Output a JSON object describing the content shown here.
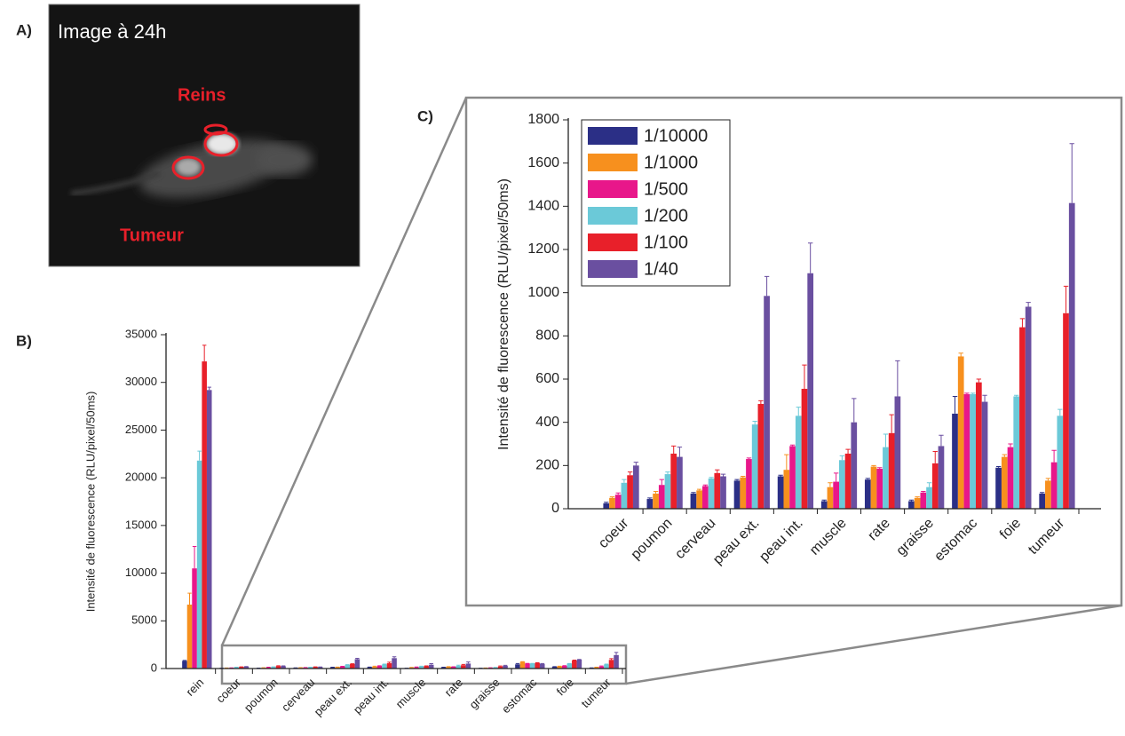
{
  "panel_a": {
    "label": "A)",
    "title": "Image à 24h",
    "annotations": [
      "Reins",
      "Tumeur"
    ]
  },
  "chart_data": [
    {
      "type": "bar",
      "label": "B)",
      "ylabel": "Intensité de fluorescence (RLU/pixel/50ms)",
      "categories": [
        "rein",
        "coeur",
        "poumon",
        "cerveau",
        "peau ext.",
        "peau int.",
        "muscle",
        "rate",
        "graisse",
        "estomac",
        "foie",
        "tumeur"
      ],
      "series": [
        {
          "name": "1/10000",
          "color": "#2b2f86",
          "values": [
            800,
            25,
            45,
            70,
            130,
            150,
            35,
            135,
            35,
            440,
            190,
            70
          ],
          "errors": [
            50,
            5,
            5,
            5,
            5,
            5,
            5,
            5,
            5,
            80,
            5,
            5
          ]
        },
        {
          "name": "1/1000",
          "color": "#f7901e",
          "values": [
            6700,
            50,
            70,
            85,
            145,
            180,
            100,
            195,
            50,
            705,
            240,
            130
          ],
          "errors": [
            1200,
            5,
            10,
            5,
            5,
            70,
            20,
            5,
            5,
            15,
            10,
            10
          ]
        },
        {
          "name": "1/500",
          "color": "#e8178a",
          "values": [
            10500,
            65,
            110,
            105,
            230,
            290,
            125,
            185,
            75,
            530,
            285,
            215
          ],
          "errors": [
            2300,
            8,
            25,
            5,
            5,
            5,
            40,
            5,
            5,
            5,
            15,
            55
          ]
        },
        {
          "name": "1/200",
          "color": "#6bc9d8",
          "values": [
            21800,
            120,
            160,
            140,
            390,
            430,
            225,
            285,
            100,
            530,
            520,
            430
          ],
          "errors": [
            1000,
            15,
            10,
            5,
            15,
            40,
            20,
            60,
            20,
            5,
            5,
            30
          ]
        },
        {
          "name": "1/100",
          "color": "#e8202a",
          "values": [
            32200,
            155,
            255,
            165,
            485,
            555,
            255,
            350,
            210,
            585,
            840,
            905
          ],
          "errors": [
            1700,
            15,
            35,
            15,
            15,
            110,
            20,
            85,
            55,
            15,
            40,
            125
          ]
        },
        {
          "name": "1/40",
          "color": "#6a4fa0",
          "values": [
            29200,
            200,
            240,
            150,
            985,
            1090,
            400,
            520,
            290,
            495,
            935,
            1415
          ],
          "errors": [
            300,
            15,
            45,
            10,
            90,
            140,
            110,
            165,
            50,
            30,
            20,
            275
          ]
        }
      ],
      "ylim": [
        0,
        35000
      ],
      "yticks": [
        0,
        5000,
        10000,
        15000,
        20000,
        25000,
        30000,
        35000
      ],
      "legend": false
    },
    {
      "type": "bar",
      "label": "C)",
      "ylabel": "Intensité de fluorescence (RLU/pixel/50ms)",
      "categories": [
        "coeur",
        "poumon",
        "cerveau",
        "peau ext.",
        "peau int.",
        "muscle",
        "rate",
        "graisse",
        "estomac",
        "foie",
        "tumeur"
      ],
      "series": [
        {
          "name": "1/10000",
          "color": "#2b2f86",
          "values": [
            25,
            45,
            70,
            130,
            150,
            35,
            135,
            35,
            440,
            190,
            70
          ],
          "errors": [
            5,
            5,
            5,
            5,
            5,
            5,
            5,
            5,
            80,
            5,
            5
          ]
        },
        {
          "name": "1/1000",
          "color": "#f7901e",
          "values": [
            50,
            70,
            85,
            145,
            180,
            100,
            195,
            50,
            705,
            240,
            130
          ],
          "errors": [
            5,
            10,
            5,
            5,
            70,
            20,
            5,
            5,
            15,
            10,
            10
          ]
        },
        {
          "name": "1/500",
          "color": "#e8178a",
          "values": [
            65,
            110,
            105,
            230,
            290,
            125,
            185,
            75,
            530,
            285,
            215
          ],
          "errors": [
            8,
            25,
            5,
            5,
            5,
            40,
            5,
            5,
            5,
            15,
            55
          ]
        },
        {
          "name": "1/200",
          "color": "#6bc9d8",
          "values": [
            120,
            160,
            140,
            390,
            430,
            225,
            285,
            100,
            530,
            520,
            430
          ],
          "errors": [
            15,
            10,
            5,
            15,
            40,
            20,
            60,
            20,
            5,
            5,
            30
          ]
        },
        {
          "name": "1/100",
          "color": "#e8202a",
          "values": [
            155,
            255,
            165,
            485,
            555,
            255,
            350,
            210,
            585,
            840,
            905
          ],
          "errors": [
            15,
            35,
            15,
            15,
            110,
            20,
            85,
            55,
            15,
            40,
            125
          ]
        },
        {
          "name": "1/40",
          "color": "#6a4fa0",
          "values": [
            200,
            240,
            150,
            985,
            1090,
            400,
            520,
            290,
            495,
            935,
            1415
          ],
          "errors": [
            15,
            45,
            10,
            90,
            140,
            110,
            165,
            50,
            30,
            20,
            275
          ]
        }
      ],
      "ylim": [
        0,
        1800
      ],
      "yticks": [
        0,
        200,
        400,
        600,
        800,
        1000,
        1200,
        1400,
        1600,
        1800
      ],
      "legend": "upper left"
    }
  ]
}
